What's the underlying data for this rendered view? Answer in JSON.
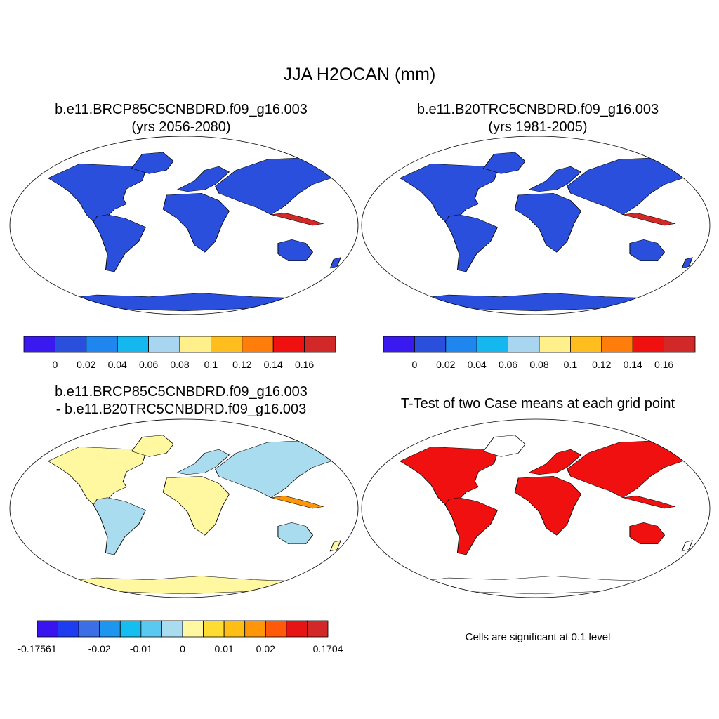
{
  "figure": {
    "title": "JJA H2OCAN (mm)"
  },
  "panels": [
    {
      "id": "future",
      "title_line1": "b.e11.BRCP85C5CNBDRD.f09_g16.003",
      "title_line2": "(yrs 2056-2080)",
      "colorbar": {
        "colors": [
          "#3a18f0",
          "#2a4fdc",
          "#1e86ee",
          "#14b7ee",
          "#a8d6f0",
          "#fff08c",
          "#ffbe1e",
          "#ff7d0a",
          "#f01010",
          "#d22828"
        ],
        "labels": [
          "0",
          "0.02",
          "0.04",
          "0.06",
          "0.08",
          "0.1",
          "0.12",
          "0.14",
          "0.16"
        ]
      }
    },
    {
      "id": "historical",
      "title_line1": "b.e11.B20TRC5CNBDRD.f09_g16.003",
      "title_line2": "(yrs 1981-2005)",
      "colorbar": {
        "colors": [
          "#3a18f0",
          "#2a4fdc",
          "#1e86ee",
          "#14b7ee",
          "#a8d6f0",
          "#fff08c",
          "#ffbe1e",
          "#ff7d0a",
          "#f01010",
          "#d22828"
        ],
        "labels": [
          "0",
          "0.02",
          "0.04",
          "0.06",
          "0.08",
          "0.1",
          "0.12",
          "0.14",
          "0.16"
        ]
      }
    },
    {
      "id": "difference",
      "title_line1": "b.e11.BRCP85C5CNBDRD.f09_g16.003",
      "title_line2": "- b.e11.B20TRC5CNBDRD.f09_g16.003",
      "colorbar": {
        "colors": [
          "#3a14f0",
          "#1e3cf0",
          "#3c6ee6",
          "#1e96f0",
          "#14bef0",
          "#5ac8f0",
          "#aadcf0",
          "#fff8a0",
          "#ffdc32",
          "#ffbe14",
          "#ff960a",
          "#ff5a0a",
          "#e61414",
          "#d22828"
        ],
        "labels": [
          "-0.17561",
          "-0.02",
          "-0.01",
          "0",
          "0.01",
          "0.02",
          "0.1704"
        ]
      }
    },
    {
      "id": "ttest",
      "title_line1": "T-Test of two Case means at each grid point",
      "note": "Cells are significant at 0.1 level"
    }
  ]
}
